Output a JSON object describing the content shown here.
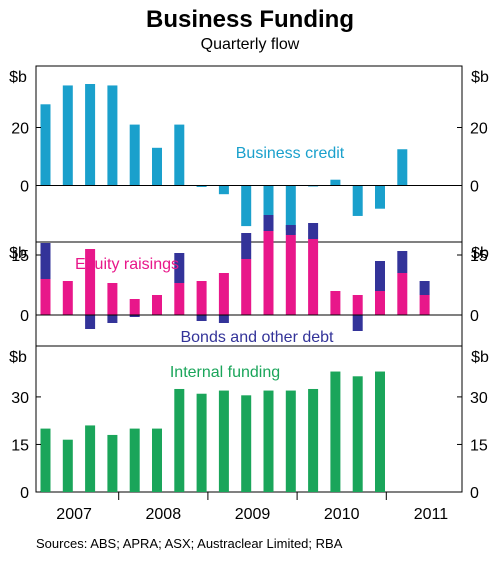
{
  "title": "Business Funding",
  "subtitle": "Quarterly flow",
  "source": "Sources: ABS; APRA; ASX; Austraclear Limited; RBA",
  "colors": {
    "credit": "#1aa0cc",
    "equity": "#e8178a",
    "bonds": "#333399",
    "internal": "#1aa55a"
  },
  "chart_data": [
    {
      "type": "bar",
      "title": "",
      "ylabel": "$b",
      "ylim": [
        -16,
        40
      ],
      "yticks": [
        0,
        20
      ],
      "annotation": "Business credit",
      "series": [
        {
          "name": "Business credit",
          "values": [
            28,
            34.5,
            35,
            34.5,
            21,
            13,
            21,
            -0.5,
            -3,
            -14,
            -15,
            -15.5,
            0,
            2,
            -10.5,
            -8,
            12.5
          ]
        }
      ]
    },
    {
      "type": "bar",
      "stacked": true,
      "ylabel": "$b",
      "ylim": [
        -8,
        25
      ],
      "yticks": [
        0,
        15
      ],
      "annotations": [
        "Equity raisings",
        "Bonds and other debt"
      ],
      "series": [
        {
          "name": "Equity raisings",
          "values": [
            9,
            8.5,
            16.5,
            8,
            4,
            5,
            8,
            8.5,
            10.5,
            14,
            21,
            20,
            19,
            6,
            5,
            6,
            10.5,
            5
          ]
        },
        {
          "name": "Bonds and other debt",
          "values": [
            9,
            0,
            -3.5,
            -2,
            -0.5,
            0,
            7.5,
            -1.5,
            -2,
            6.5,
            4,
            2.5,
            4,
            0,
            -4,
            7.5,
            5.5,
            3.5
          ]
        }
      ]
    },
    {
      "type": "bar",
      "ylabel": "$b",
      "ylim": [
        0,
        41
      ],
      "yticks": [
        0,
        15,
        30
      ],
      "annotation": "Internal funding",
      "series": [
        {
          "name": "Internal funding",
          "values": [
            20,
            16.5,
            21,
            18,
            20,
            20,
            32.5,
            31,
            32,
            30.5,
            32,
            32,
            32.5,
            38,
            36.5,
            38
          ]
        }
      ]
    }
  ],
  "x_labels": [
    "2007",
    "2008",
    "2009",
    "2010",
    "2011"
  ]
}
